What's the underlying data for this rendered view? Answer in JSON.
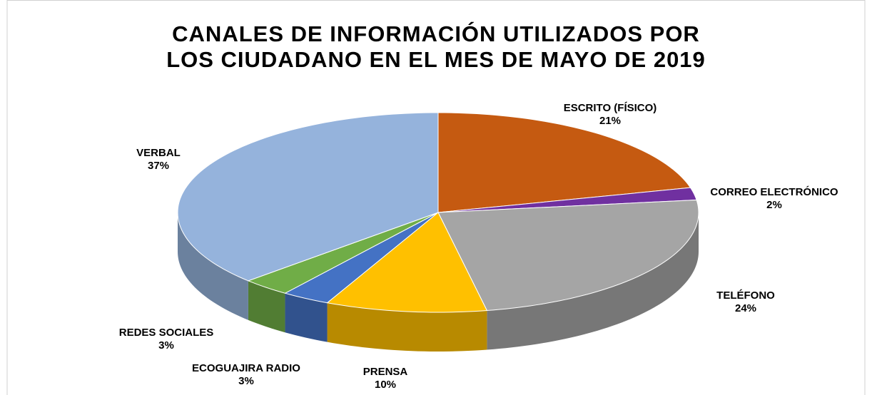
{
  "chart_data": {
    "type": "pie",
    "title": "CANALES DE INFORMACIÓN UTILIZADOS POR LOS CIUDADANO EN EL MES DE MAYO DE 2019",
    "categories": [
      "ESCRITO (FÍSICO)",
      "CORREO ELECTRÓNICO",
      "TELÉFONO",
      "PRENSA",
      "ECOGUAJIRA RADIO",
      "REDES SOCIALES",
      "VERBAL"
    ],
    "values": [
      21,
      2,
      24,
      10,
      3,
      3,
      37
    ],
    "value_labels": [
      "21%",
      "2%",
      "24%",
      "10%",
      "3%",
      "3%",
      "37%"
    ],
    "colors": [
      "#c55a11",
      "#7030a0",
      "#a5a5a5",
      "#ffc000",
      "#4472c4",
      "#70ad47",
      "#95b3dc"
    ]
  }
}
